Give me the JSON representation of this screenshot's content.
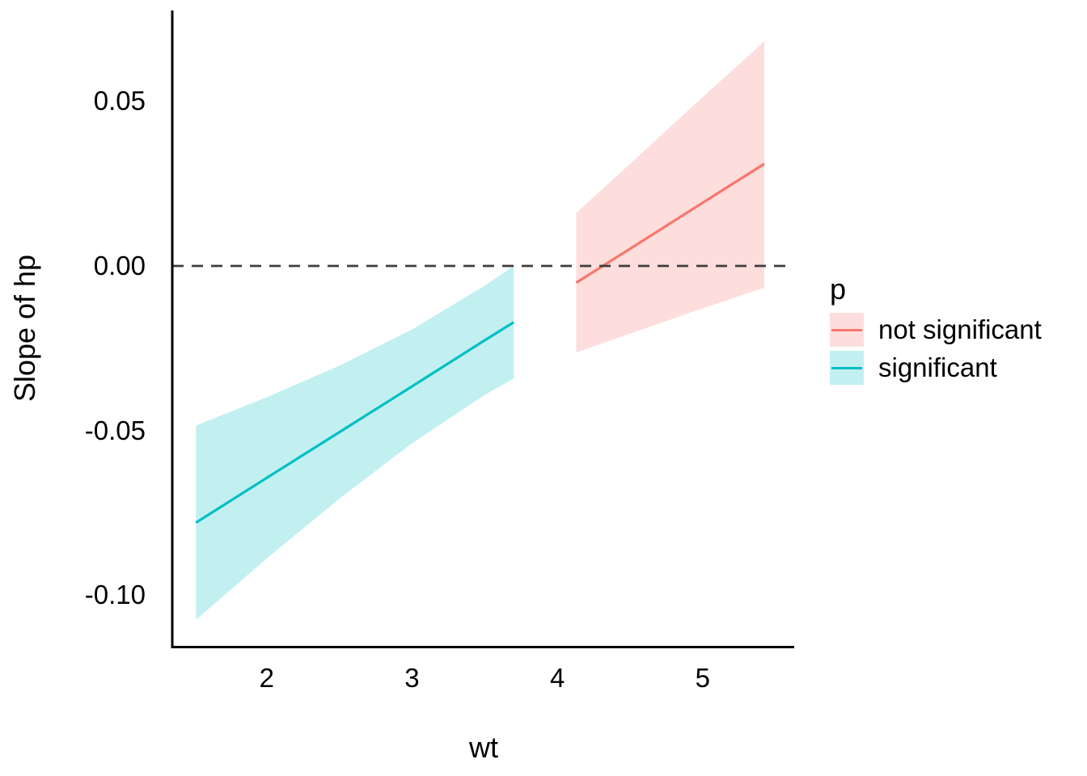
{
  "figure": {
    "background": "#ffffff"
  },
  "chart_data": {
    "type": "line",
    "title": "",
    "xlabel": "wt",
    "ylabel": "Slope of hp",
    "xlim": [
      1.35,
      5.63
    ],
    "ylim": [
      -0.1158,
      0.0776
    ],
    "grid": false,
    "axis_color": "#000000",
    "xticks": [
      {
        "v": 2,
        "label": "2"
      },
      {
        "v": 3,
        "label": "3"
      },
      {
        "v": 4,
        "label": "4"
      },
      {
        "v": 5,
        "label": "5"
      }
    ],
    "yticks": [
      {
        "v": 0.05,
        "label": "0.05"
      },
      {
        "v": 0.0,
        "label": "0.00"
      },
      {
        "v": -0.05,
        "label": "-0.05"
      },
      {
        "v": -0.1,
        "label": "-0.10"
      }
    ],
    "hline": {
      "v": 0,
      "style": "dashed",
      "color": "#3d3d3d"
    },
    "legend": {
      "title": "p",
      "position": "right"
    },
    "series": [
      {
        "name": "not significant",
        "color": "#F8766D",
        "fill": "rgba(248,118,109,0.24)",
        "x": [
          4.13,
          4.5,
          5.0,
          5.424
        ],
        "y": [
          -0.0051,
          0.0052,
          0.0192,
          0.031
        ],
        "lower": [
          -0.0263,
          -0.0206,
          -0.0129,
          -0.0066
        ],
        "upper": [
          0.0161,
          0.031,
          0.0513,
          0.0682
        ]
      },
      {
        "name": "significant",
        "color": "#00BFC4",
        "fill": "rgba(0,191,196,0.24)",
        "x": [
          1.513,
          2.0,
          2.5,
          3.0,
          3.5,
          3.7
        ],
        "y": [
          -0.078,
          -0.0644,
          -0.0505,
          -0.0366,
          -0.0226,
          -0.0171
        ],
        "lower": [
          -0.1075,
          -0.0889,
          -0.0707,
          -0.0539,
          -0.0392,
          -0.0342
        ],
        "upper": [
          -0.0485,
          -0.0399,
          -0.0303,
          -0.0193,
          -0.006,
          0.0
        ]
      }
    ]
  }
}
